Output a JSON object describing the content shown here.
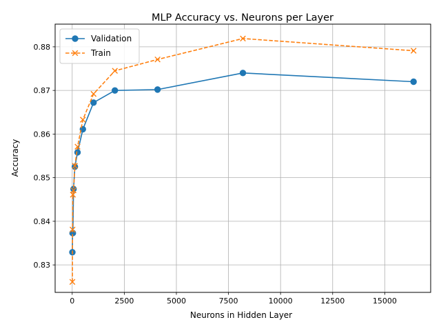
{
  "chart_data": {
    "type": "line",
    "title": "MLP Accuracy vs. Neurons per Layer",
    "xlabel": "Neurons in Hidden Layer",
    "ylabel": "Accuracy",
    "xlim": [
      -820,
      17204
    ],
    "ylim": [
      0.8237,
      0.8852
    ],
    "xticks": [
      0,
      2500,
      5000,
      7500,
      10000,
      12500,
      15000
    ],
    "xtick_labels": [
      "0",
      "2500",
      "5000",
      "7500",
      "10000",
      "12500",
      "15000"
    ],
    "yticks": [
      0.83,
      0.84,
      0.85,
      0.86,
      0.87,
      0.88
    ],
    "ytick_labels": [
      "0.83",
      "0.84",
      "0.85",
      "0.86",
      "0.87",
      "0.88"
    ],
    "grid": true,
    "legend_position": "upper-left",
    "series": [
      {
        "name": "Validation",
        "color": "#1f77b4",
        "linestyle": "solid",
        "marker": "circle",
        "x": [
          8,
          16,
          32,
          64,
          128,
          256,
          512,
          1024,
          2048,
          4096,
          8192,
          16384
        ],
        "y": [
          0.8329,
          0.8373,
          0.8373,
          0.8474,
          0.8525,
          0.8558,
          0.8611,
          0.8672,
          0.87,
          0.8702,
          0.874,
          0.872
        ]
      },
      {
        "name": "Train",
        "color": "#ff7f0e",
        "linestyle": "dashed",
        "marker": "x",
        "x": [
          8,
          16,
          32,
          64,
          128,
          256,
          512,
          1024,
          2048,
          4096,
          8192,
          16384
        ],
        "y": [
          0.8261,
          0.8381,
          0.8461,
          0.8471,
          0.8527,
          0.8571,
          0.8633,
          0.8692,
          0.8745,
          0.8771,
          0.8819,
          0.8791
        ]
      }
    ]
  }
}
